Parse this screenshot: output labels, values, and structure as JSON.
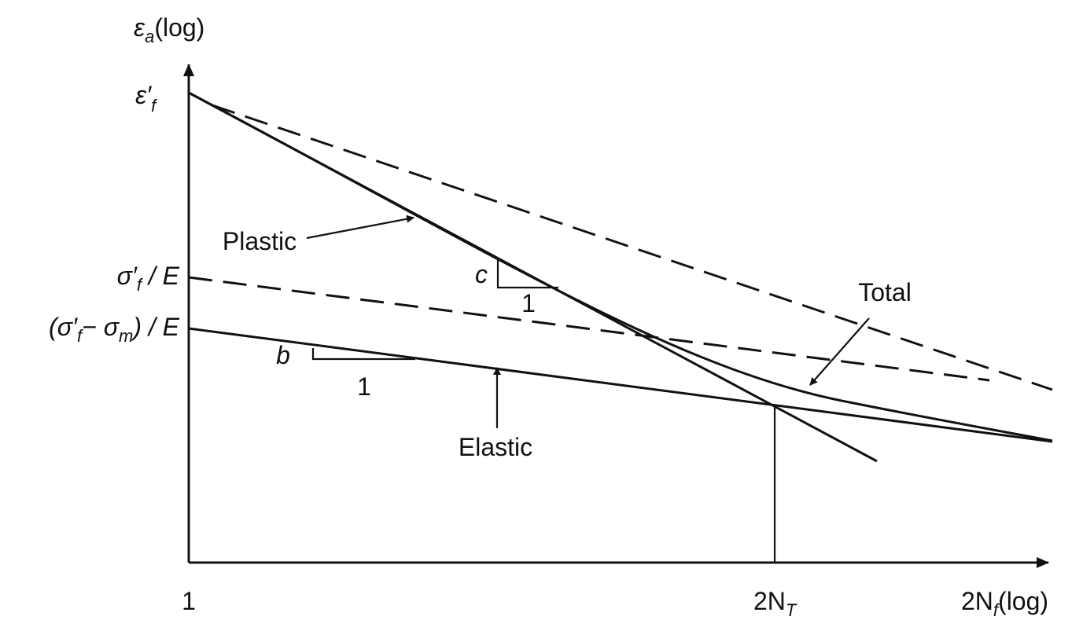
{
  "y_axis_label": {
    "main": "ε",
    "sub": "a",
    "tail": "(log)"
  },
  "y_labels": {
    "strain_coefficient": {
      "main": "ε′",
      "sub": "f"
    },
    "stress_over_e": {
      "main": "σ′",
      "sub": "f",
      "tail": " / E"
    },
    "mean_stress_over_e": {
      "main": "(σ′",
      "sub": "f",
      "middle": "− σ",
      "sub2": "m",
      "tail": ") / E"
    }
  },
  "x_labels": {
    "origin": "1",
    "transition": {
      "main": "2N",
      "sub": "T"
    },
    "axis": {
      "main": "2N",
      "sub": "f",
      "tail": "(log)"
    }
  },
  "curves": {
    "plastic": "Plastic",
    "total": "Total",
    "elastic": "Elastic"
  },
  "slopes": {
    "plastic": {
      "rise": "c",
      "run": "1"
    },
    "elastic": {
      "rise": "b",
      "run": "1"
    }
  }
}
